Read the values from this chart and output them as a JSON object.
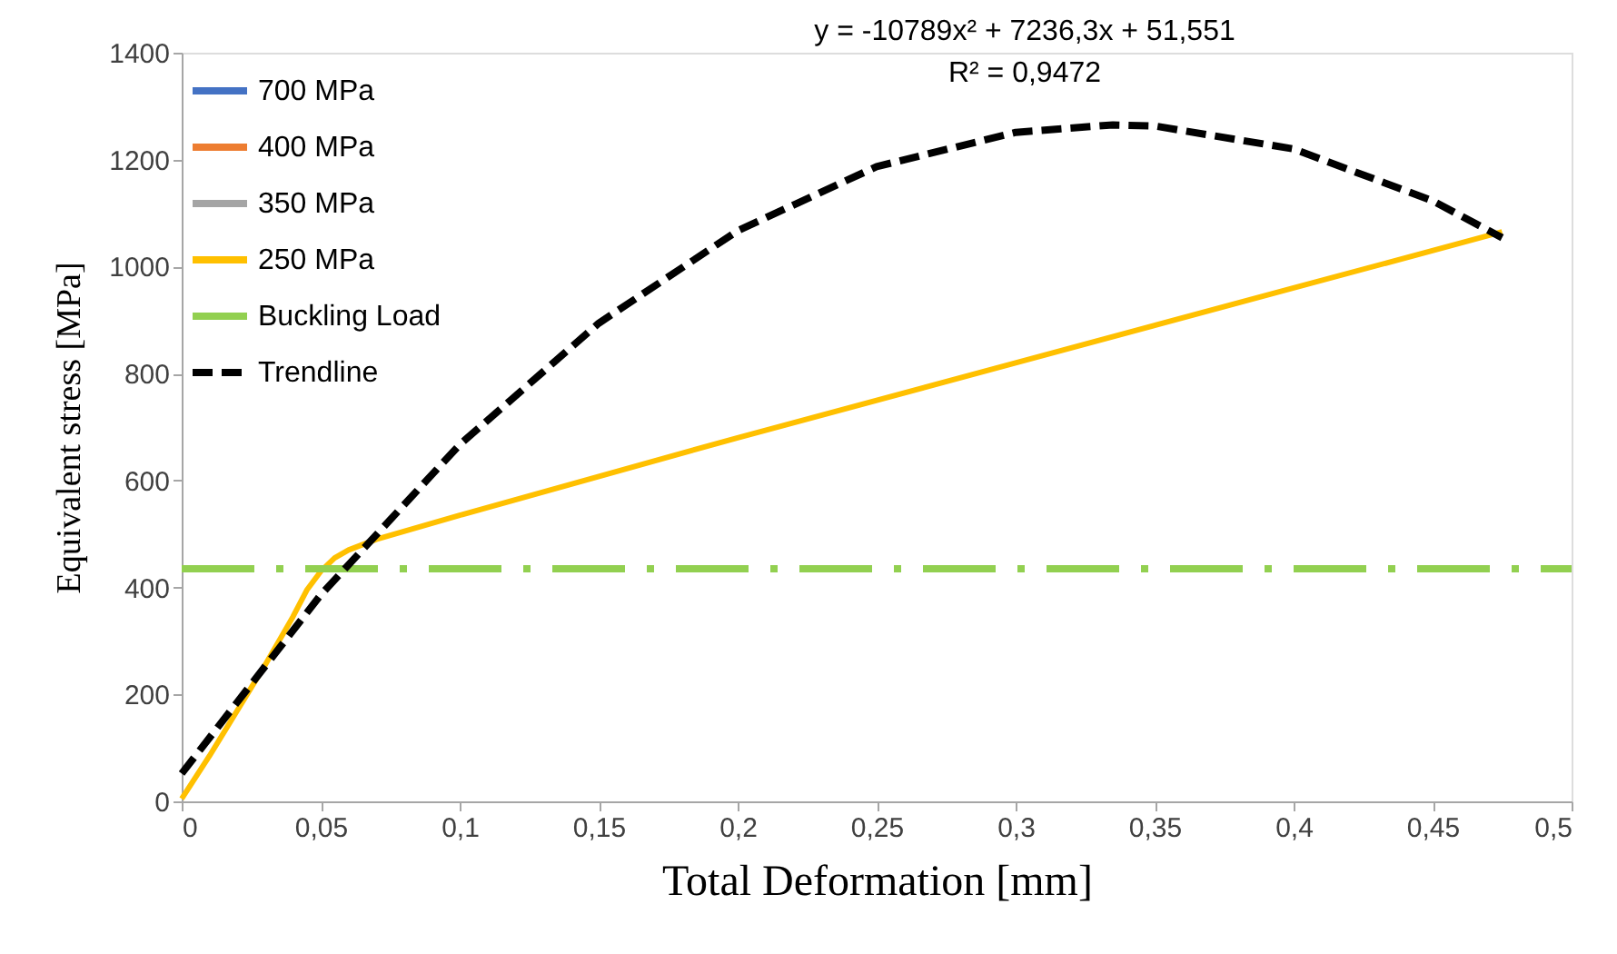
{
  "chart_data": {
    "type": "line",
    "xlabel": "Total Deformation [mm]",
    "ylabel": "Equivalent stress [MPa]",
    "annotations": [
      "y = -10789x² + 7236,3x + 51,551",
      "R² = 0,9472"
    ],
    "x": [
      0,
      0.01,
      0.02,
      0.03,
      0.04,
      0.045,
      0.05,
      0.055,
      0.06,
      0.07,
      0.1,
      0.2,
      0.3,
      0.4,
      0.475
    ],
    "series": [
      {
        "name": "700 MPa",
        "color": "#4472c4",
        "values": [
          null,
          null,
          null,
          null,
          null,
          null,
          null,
          null,
          null,
          null,
          null,
          null,
          null,
          null,
          null
        ]
      },
      {
        "name": "400 MPa",
        "color": "#ed7d31",
        "values": [
          null,
          null,
          null,
          null,
          null,
          null,
          null,
          null,
          null,
          null,
          null,
          null,
          null,
          null,
          null
        ]
      },
      {
        "name": "350 MPa",
        "color": "#a5a5a5",
        "values": [
          null,
          null,
          null,
          null,
          null,
          null,
          null,
          null,
          null,
          null,
          null,
          null,
          null,
          null,
          null
        ]
      },
      {
        "name": "250 MPa",
        "color": "#ffc000",
        "values": [
          5,
          85,
          170,
          255,
          345,
          395,
          430,
          455,
          470,
          490,
          535,
          680,
          820,
          960,
          1065
        ]
      },
      {
        "name": "Buckling Load",
        "color": "#92d050",
        "line_style": "dashdot",
        "x": [
          0,
          0.5
        ],
        "values": [
          435,
          435
        ]
      },
      {
        "name": "Trendline",
        "color": "#000000",
        "line_style": "dashed",
        "x": [
          0,
          0.05,
          0.1,
          0.15,
          0.2,
          0.25,
          0.3,
          0.335,
          0.35,
          0.4,
          0.45,
          0.475
        ],
        "values": [
          52,
          386,
          667,
          894,
          1067,
          1187,
          1251,
          1265,
          1263,
          1220,
          1123,
          1054
        ]
      }
    ],
    "xlim": [
      0,
      0.5
    ],
    "xticks": [
      0,
      {
        "value": 0.05,
        "label": "0,05"
      },
      {
        "value": 0.1,
        "label": "0,1"
      },
      {
        "value": 0.15,
        "label": "0,15"
      },
      {
        "value": 0.2,
        "label": "0,2"
      },
      {
        "value": 0.25,
        "label": "0,25"
      },
      {
        "value": 0.3,
        "label": "0,3"
      },
      {
        "value": 0.35,
        "label": "0,35"
      },
      {
        "value": 0.4,
        "label": "0,4"
      },
      {
        "value": 0.45,
        "label": "0,45"
      },
      {
        "value": 0.5,
        "label": "0,5"
      }
    ],
    "ylim": [
      0,
      1400
    ],
    "yticks": [
      0,
      200,
      400,
      600,
      800,
      1000,
      1200,
      1400
    ],
    "grid": false,
    "legend": "top left"
  }
}
